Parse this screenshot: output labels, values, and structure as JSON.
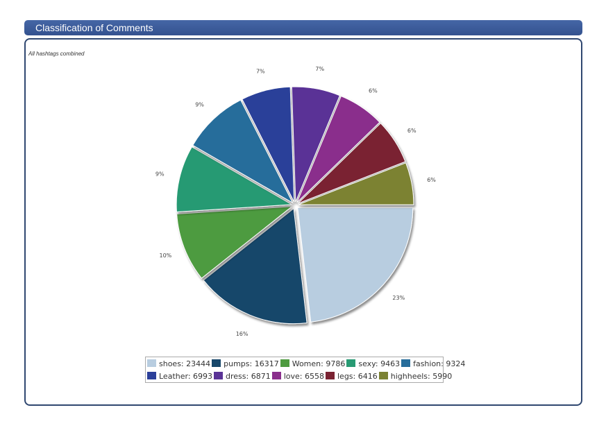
{
  "header": {
    "title": "Classification of Comments"
  },
  "chart_data": {
    "type": "pie",
    "title": "Classification of Comments",
    "subtitle": "All hashtags combined",
    "legend_position": "bottom",
    "slices": [
      {
        "label": "shoes",
        "value": 23444,
        "percent_label": "23%",
        "color": "#b8cde0"
      },
      {
        "label": "pumps",
        "value": 16317,
        "percent_label": "16%",
        "color": "#17476a"
      },
      {
        "label": "Women",
        "value": 9786,
        "percent_label": "10%",
        "color": "#4e9b40"
      },
      {
        "label": "sexy",
        "value": 9463,
        "percent_label": "9%",
        "color": "#289a73"
      },
      {
        "label": "fashion",
        "value": 9324,
        "percent_label": "9%",
        "color": "#276d9b"
      },
      {
        "label": "Leather",
        "value": 6993,
        "percent_label": "7%",
        "color": "#2b3f99"
      },
      {
        "label": "dress",
        "value": 6871,
        "percent_label": "7%",
        "color": "#5a3396"
      },
      {
        "label": "love",
        "value": 6558,
        "percent_label": "6%",
        "color": "#8a2f8c"
      },
      {
        "label": "legs",
        "value": 6416,
        "percent_label": "6%",
        "color": "#7a2332"
      },
      {
        "label": "highheels",
        "value": 5990,
        "percent_label": "6%",
        "color": "#7b8233"
      }
    ],
    "legend": [
      "shoes: 23444",
      "pumps: 16317",
      "Women: 9786",
      "sexy: 9463",
      "fashion: 9324",
      "Leather: 6993",
      "dress: 6871",
      "love: 6558",
      "legs: 6416",
      "highheels: 5990"
    ]
  }
}
